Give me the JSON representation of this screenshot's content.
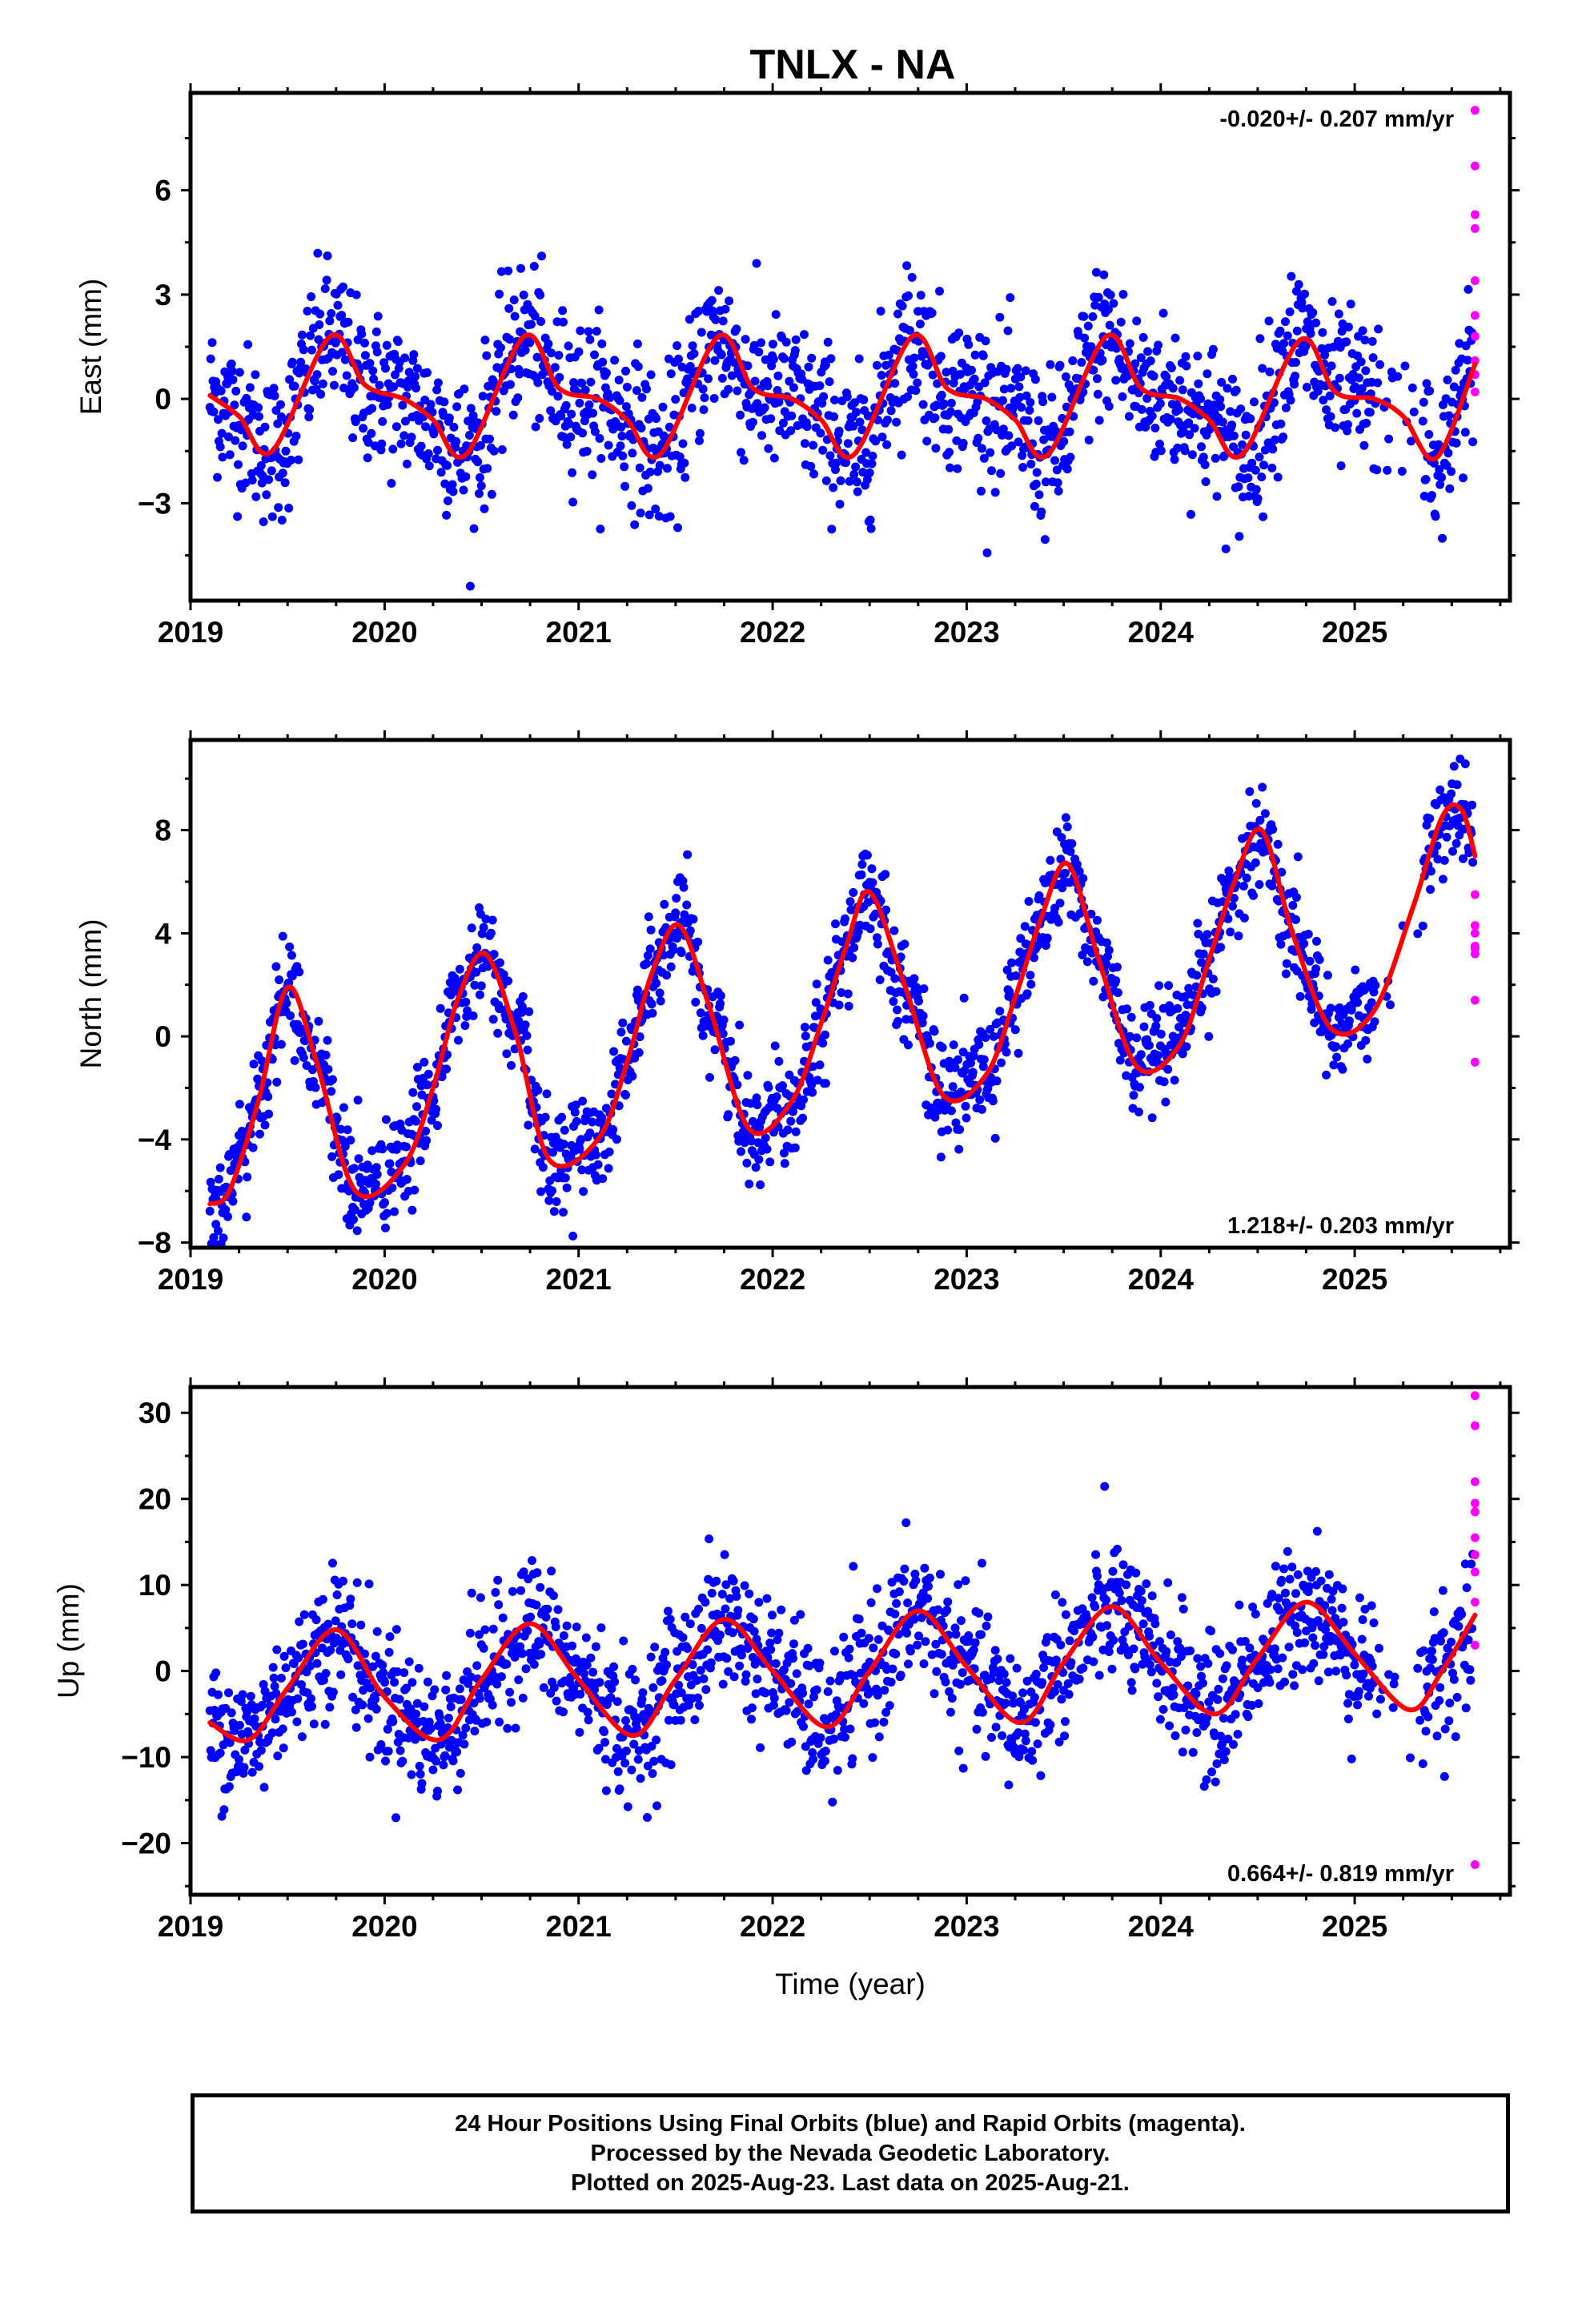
{
  "title": "TNLX - NA",
  "xlabel": "Time (year)",
  "colors": {
    "final_orbits": "#0000ff",
    "rapid_orbits": "#ff00ff",
    "model": "#ff0000",
    "axes": "#000000"
  },
  "footer": {
    "line1": "24 Hour Positions Using Final Orbits (blue) and Rapid Orbits (magenta).",
    "line2": "Processed by the Nevada Geodetic Laboratory.",
    "line3": "Plotted on 2025-Aug-23. Last data on 2025-Aug-21."
  },
  "chart_data": [
    {
      "type": "scatter",
      "panel": "east",
      "ylabel": "East (mm)",
      "rate": "-0.020+/- 0.207 mm/yr",
      "rate_position": "top-right",
      "xlim": [
        2019.0,
        2025.8
      ],
      "ylim": [
        -5.8,
        8.8
      ],
      "xticks": [
        2019,
        2020,
        2021,
        2022,
        2023,
        2024,
        2025
      ],
      "yticks": [
        -3,
        0,
        3,
        6
      ],
      "model": {
        "x": [
          2019.1,
          2019.25,
          2019.42,
          2019.72,
          2019.9,
          2020.1,
          2020.25,
          2020.42,
          2020.72,
          2020.9,
          2021.1,
          2021.25,
          2021.42,
          2021.72,
          2021.9,
          2022.1,
          2022.25,
          2022.42,
          2022.72,
          2022.9,
          2023.1,
          2023.25,
          2023.42,
          2023.72,
          2023.9,
          2024.1,
          2024.25,
          2024.42,
          2024.72,
          2024.9,
          2025.1,
          2025.25,
          2025.42,
          2025.62
        ],
        "y": [
          0.1,
          -0.5,
          -1.5,
          1.8,
          0.4,
          0.0,
          -0.6,
          -1.6,
          1.8,
          0.3,
          0.0,
          -0.6,
          -1.6,
          1.8,
          0.3,
          0.0,
          -0.6,
          -1.6,
          1.8,
          0.3,
          0.0,
          -0.6,
          -1.6,
          1.8,
          0.3,
          0.0,
          -0.6,
          -1.6,
          1.7,
          0.2,
          0.0,
          -0.5,
          -1.7,
          1.0
        ]
      },
      "rapid_points": {
        "x": [
          2025.62,
          2025.62,
          2025.62,
          2025.62,
          2025.62,
          2025.62,
          2025.62,
          2025.62,
          2025.62,
          2025.62
        ],
        "y": [
          8.3,
          6.7,
          5.3,
          4.9,
          3.4,
          2.4,
          1.8,
          1.1,
          0.7,
          0.2
        ]
      }
    },
    {
      "type": "scatter",
      "panel": "north",
      "ylabel": "North (mm)",
      "rate": "1.218+/- 0.203 mm/yr",
      "rate_position": "bottom-right",
      "xlim": [
        2019.0,
        2025.8
      ],
      "ylim": [
        -8.2,
        11.5
      ],
      "xticks": [
        2019,
        2020,
        2021,
        2022,
        2023,
        2024,
        2025
      ],
      "yticks": [
        -8,
        -4,
        0,
        4,
        8
      ],
      "model": {
        "x": [
          2019.1,
          2019.2,
          2019.35,
          2019.5,
          2019.65,
          2019.85,
          2020.1,
          2020.25,
          2020.38,
          2020.52,
          2020.68,
          2020.85,
          2021.1,
          2021.25,
          2021.38,
          2021.52,
          2021.68,
          2021.88,
          2022.1,
          2022.25,
          2022.38,
          2022.5,
          2022.68,
          2022.88,
          2023.1,
          2023.25,
          2023.38,
          2023.52,
          2023.68,
          2023.88,
          2024.1,
          2024.25,
          2024.38,
          2024.52,
          2024.68,
          2024.88,
          2025.1,
          2025.3,
          2025.45,
          2025.55,
          2025.62
        ],
        "y": [
          -6.5,
          -6.0,
          -2.5,
          1.9,
          -1.0,
          -6.0,
          -5.0,
          -2.0,
          1.5,
          3.2,
          0.0,
          -4.8,
          -4.0,
          -1.0,
          2.5,
          4.3,
          1.0,
          -3.6,
          -2.5,
          0.5,
          3.5,
          5.6,
          2.0,
          -2.3,
          -1.5,
          1.5,
          4.5,
          6.7,
          3.0,
          -1.2,
          -0.3,
          3.0,
          6.0,
          8.0,
          4.0,
          0.3,
          1.0,
          5.0,
          8.5,
          8.8,
          7.0
        ]
      },
      "rapid_points": {
        "x": [
          2025.62,
          2025.62,
          2025.62,
          2025.62,
          2025.62,
          2025.62,
          2025.62,
          2025.62
        ],
        "y": [
          5.5,
          4.3,
          4.0,
          3.5,
          3.4,
          3.2,
          1.4,
          -1.0
        ]
      }
    },
    {
      "type": "scatter",
      "panel": "up",
      "ylabel": "Up (mm)",
      "rate": "0.664+/- 0.819 mm/yr",
      "rate_position": "bottom-right",
      "xlim": [
        2019.0,
        2025.8
      ],
      "ylim": [
        -26,
        33
      ],
      "xticks": [
        2019,
        2020,
        2021,
        2022,
        2023,
        2024,
        2025
      ],
      "yticks": [
        -20,
        -10,
        0,
        10,
        20,
        30
      ],
      "model": {
        "x": [
          2019.1,
          2019.3,
          2019.5,
          2019.75,
          2020.0,
          2020.28,
          2020.5,
          2020.75,
          2021.0,
          2021.28,
          2021.5,
          2021.75,
          2022.0,
          2022.28,
          2022.5,
          2022.75,
          2023.0,
          2023.28,
          2023.5,
          2023.75,
          2024.0,
          2024.28,
          2024.5,
          2024.75,
          2025.0,
          2025.28,
          2025.45,
          2025.62
        ],
        "y": [
          -6.0,
          -8.0,
          -2.0,
          4.8,
          -3.0,
          -8.0,
          -1.0,
          5.5,
          -1.0,
          -7.5,
          -1.0,
          6.0,
          0.0,
          -6.5,
          0.0,
          7.0,
          0.5,
          -6.0,
          1.0,
          7.5,
          1.0,
          -5.0,
          1.5,
          8.0,
          2.0,
          -4.5,
          0.0,
          6.5
        ]
      },
      "rapid_points": {
        "x": [
          2025.62,
          2025.62,
          2025.62,
          2025.62,
          2025.62,
          2025.62,
          2025.62,
          2025.62,
          2025.62,
          2025.62,
          2025.62
        ],
        "y": [
          32.0,
          28.5,
          22.0,
          19.5,
          18.5,
          15.5,
          13.5,
          11.5,
          8.0,
          3.0,
          -22.5
        ]
      }
    }
  ]
}
